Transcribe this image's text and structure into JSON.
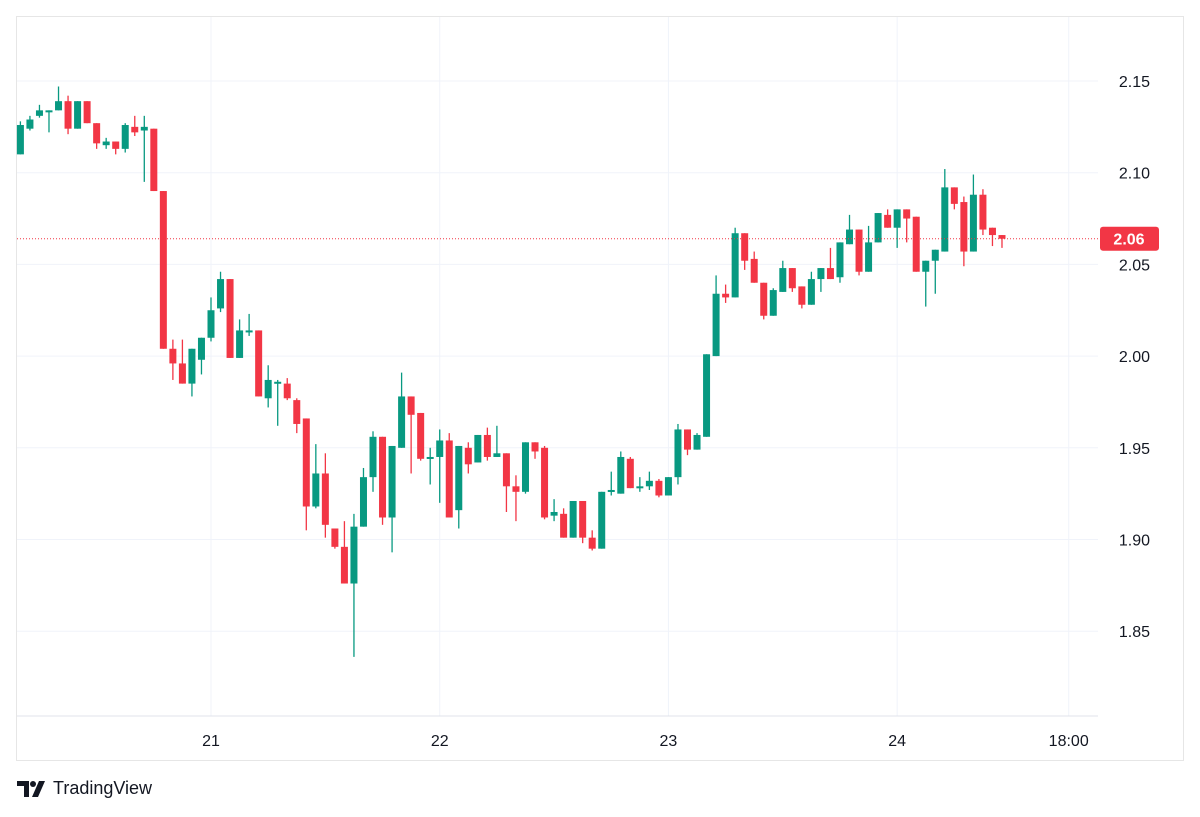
{
  "chart_data": {
    "type": "candlestick",
    "title": "",
    "x_ticks": [
      {
        "label": "21",
        "t": "21 00:00"
      },
      {
        "label": "22",
        "t": "22 00:00"
      },
      {
        "label": "23",
        "t": "23 00:00"
      },
      {
        "label": "24",
        "t": "24 00:00"
      },
      {
        "label": "18:00",
        "t": "24 18:00"
      }
    ],
    "y_ticks": [
      "2.15",
      "2.10",
      "2.05",
      "2.00",
      "1.95",
      "1.90",
      "1.85"
    ],
    "ylim": [
      1.81,
      2.19
    ],
    "grid": true,
    "last_price": {
      "label": "2.06",
      "value": 2.064,
      "color": "#f23645"
    },
    "colors": {
      "up": "#089981",
      "down": "#f23645"
    },
    "fields": [
      "time",
      "open",
      "high",
      "low",
      "close"
    ],
    "candles": [
      [
        "20 04:00",
        2.11,
        2.128,
        2.11,
        2.126
      ],
      [
        "20 05:00",
        2.124,
        2.131,
        2.123,
        2.129
      ],
      [
        "20 06:00",
        2.131,
        2.137,
        2.13,
        2.134
      ],
      [
        "20 07:00",
        2.133,
        2.134,
        2.122,
        2.134
      ],
      [
        "20 08:00",
        2.134,
        2.147,
        2.134,
        2.139
      ],
      [
        "20 09:00",
        2.139,
        2.142,
        2.121,
        2.124
      ],
      [
        "20 10:00",
        2.124,
        2.139,
        2.124,
        2.139
      ],
      [
        "20 11:00",
        2.139,
        2.139,
        2.127,
        2.127
      ],
      [
        "20 12:00",
        2.127,
        2.127,
        2.113,
        2.116
      ],
      [
        "20 13:00",
        2.115,
        2.119,
        2.113,
        2.117
      ],
      [
        "20 14:00",
        2.117,
        2.117,
        2.11,
        2.113
      ],
      [
        "20 15:00",
        2.113,
        2.127,
        2.111,
        2.126
      ],
      [
        "20 16:00",
        2.125,
        2.131,
        2.12,
        2.122
      ],
      [
        "20 17:00",
        2.123,
        2.131,
        2.095,
        2.125
      ],
      [
        "20 18:00",
        2.124,
        2.124,
        2.09,
        2.09
      ],
      [
        "20 19:00",
        2.09,
        2.09,
        2.004,
        2.004
      ],
      [
        "20 20:00",
        2.004,
        2.009,
        1.987,
        1.996
      ],
      [
        "20 21:00",
        1.996,
        2.009,
        1.985,
        1.985
      ],
      [
        "20 22:00",
        1.985,
        2.004,
        1.978,
        2.004
      ],
      [
        "20 23:00",
        1.998,
        2.01,
        1.99,
        2.01
      ],
      [
        "21 00:00",
        2.01,
        2.032,
        2.008,
        2.025
      ],
      [
        "21 01:00",
        2.026,
        2.046,
        2.024,
        2.042
      ],
      [
        "21 02:00",
        2.042,
        2.042,
        1.999,
        1.999
      ],
      [
        "21 03:00",
        1.999,
        2.02,
        1.999,
        2.014
      ],
      [
        "21 04:00",
        2.014,
        2.023,
        2.011,
        2.014
      ],
      [
        "21 05:00",
        2.014,
        2.014,
        1.978,
        1.978
      ],
      [
        "21 06:00",
        1.977,
        1.995,
        1.972,
        1.987
      ],
      [
        "21 07:00",
        1.986,
        1.987,
        1.962,
        1.986
      ],
      [
        "21 08:00",
        1.985,
        1.988,
        1.976,
        1.977
      ],
      [
        "21 09:00",
        1.976,
        1.977,
        1.958,
        1.963
      ],
      [
        "21 10:00",
        1.966,
        1.966,
        1.905,
        1.918
      ],
      [
        "21 11:00",
        1.918,
        1.952,
        1.917,
        1.936
      ],
      [
        "21 12:00",
        1.936,
        1.947,
        1.901,
        1.908
      ],
      [
        "21 13:00",
        1.906,
        1.906,
        1.895,
        1.896
      ],
      [
        "21 14:00",
        1.896,
        1.91,
        1.876,
        1.876
      ],
      [
        "21 15:00",
        1.876,
        1.914,
        1.836,
        1.907
      ],
      [
        "21 16:00",
        1.907,
        1.939,
        1.907,
        1.934
      ],
      [
        "21 17:00",
        1.934,
        1.959,
        1.926,
        1.956
      ],
      [
        "21 18:00",
        1.956,
        1.956,
        1.908,
        1.912
      ],
      [
        "21 19:00",
        1.912,
        1.951,
        1.893,
        1.951
      ],
      [
        "21 20:00",
        1.95,
        1.991,
        1.95,
        1.978
      ],
      [
        "21 21:00",
        1.978,
        1.978,
        1.936,
        1.968
      ],
      [
        "21 22:00",
        1.969,
        1.969,
        1.943,
        1.944
      ],
      [
        "21 23:00",
        1.945,
        1.95,
        1.93,
        1.945
      ],
      [
        "22 00:00",
        1.945,
        1.96,
        1.92,
        1.954
      ],
      [
        "22 01:00",
        1.954,
        1.958,
        1.912,
        1.912
      ],
      [
        "22 02:00",
        1.916,
        1.951,
        1.906,
        1.951
      ],
      [
        "22 03:00",
        1.95,
        1.953,
        1.936,
        1.941
      ],
      [
        "22 04:00",
        1.942,
        1.957,
        1.942,
        1.957
      ],
      [
        "22 05:00",
        1.957,
        1.961,
        1.943,
        1.945
      ],
      [
        "22 06:00",
        1.945,
        1.962,
        1.945,
        1.947
      ],
      [
        "22 07:00",
        1.947,
        1.947,
        1.915,
        1.929
      ],
      [
        "22 08:00",
        1.929,
        1.935,
        1.91,
        1.926
      ],
      [
        "22 09:00",
        1.926,
        1.953,
        1.925,
        1.953
      ],
      [
        "22 10:00",
        1.953,
        1.953,
        1.944,
        1.948
      ],
      [
        "22 11:00",
        1.95,
        1.951,
        1.911,
        1.912
      ],
      [
        "22 12:00",
        1.913,
        1.922,
        1.91,
        1.915
      ],
      [
        "22 13:00",
        1.914,
        1.917,
        1.901,
        1.901
      ],
      [
        "22 14:00",
        1.901,
        1.921,
        1.901,
        1.921
      ],
      [
        "22 15:00",
        1.921,
        1.921,
        1.898,
        1.901
      ],
      [
        "22 16:00",
        1.901,
        1.905,
        1.894,
        1.895
      ],
      [
        "22 17:00",
        1.895,
        1.926,
        1.895,
        1.926
      ],
      [
        "22 18:00",
        1.927,
        1.937,
        1.924,
        1.927
      ],
      [
        "22 19:00",
        1.925,
        1.948,
        1.925,
        1.945
      ],
      [
        "22 20:00",
        1.944,
        1.945,
        1.928,
        1.928
      ],
      [
        "22 21:00",
        1.929,
        1.934,
        1.926,
        1.929
      ],
      [
        "22 22:00",
        1.929,
        1.937,
        1.927,
        1.932
      ],
      [
        "22 23:00",
        1.932,
        1.933,
        1.923,
        1.924
      ],
      [
        "23 00:00",
        1.924,
        1.934,
        1.924,
        1.934
      ],
      [
        "23 01:00",
        1.934,
        1.963,
        1.93,
        1.96
      ],
      [
        "23 02:00",
        1.96,
        1.96,
        1.946,
        1.949
      ],
      [
        "23 03:00",
        1.949,
        1.958,
        1.949,
        1.957
      ],
      [
        "23 04:00",
        1.956,
        2.001,
        1.956,
        2.001
      ],
      [
        "23 05:00",
        2.0,
        2.044,
        2.0,
        2.034
      ],
      [
        "23 06:00",
        2.034,
        2.039,
        2.029,
        2.032
      ],
      [
        "23 07:00",
        2.032,
        2.07,
        2.032,
        2.067
      ],
      [
        "23 08:00",
        2.067,
        2.067,
        2.047,
        2.052
      ],
      [
        "23 09:00",
        2.053,
        2.057,
        2.04,
        2.04
      ],
      [
        "23 10:00",
        2.04,
        2.04,
        2.02,
        2.022
      ],
      [
        "23 11:00",
        2.022,
        2.037,
        2.022,
        2.036
      ],
      [
        "23 12:00",
        2.035,
        2.052,
        2.035,
        2.048
      ],
      [
        "23 13:00",
        2.048,
        2.048,
        2.035,
        2.037
      ],
      [
        "23 14:00",
        2.038,
        2.038,
        2.026,
        2.028
      ],
      [
        "23 15:00",
        2.028,
        2.046,
        2.028,
        2.042
      ],
      [
        "23 16:00",
        2.042,
        2.048,
        2.035,
        2.048
      ],
      [
        "23 17:00",
        2.048,
        2.059,
        2.042,
        2.042
      ],
      [
        "23 18:00",
        2.043,
        2.062,
        2.04,
        2.062
      ],
      [
        "23 19:00",
        2.061,
        2.077,
        2.061,
        2.069
      ],
      [
        "23 20:00",
        2.069,
        2.069,
        2.044,
        2.046
      ],
      [
        "23 21:00",
        2.046,
        2.071,
        2.046,
        2.062
      ],
      [
        "23 22:00",
        2.062,
        2.078,
        2.062,
        2.078
      ],
      [
        "23 23:00",
        2.077,
        2.08,
        2.07,
        2.07
      ],
      [
        "24 00:00",
        2.07,
        2.08,
        2.059,
        2.08
      ],
      [
        "24 01:00",
        2.08,
        2.08,
        2.062,
        2.075
      ],
      [
        "24 02:00",
        2.076,
        2.076,
        2.046,
        2.046
      ],
      [
        "24 03:00",
        2.046,
        2.052,
        2.027,
        2.052
      ],
      [
        "24 04:00",
        2.052,
        2.058,
        2.034,
        2.058
      ],
      [
        "24 05:00",
        2.057,
        2.102,
        2.057,
        2.092
      ],
      [
        "24 06:00",
        2.092,
        2.092,
        2.08,
        2.083
      ],
      [
        "24 07:00",
        2.084,
        2.087,
        2.049,
        2.057
      ],
      [
        "24 08:00",
        2.057,
        2.099,
        2.057,
        2.088
      ],
      [
        "24 09:00",
        2.088,
        2.091,
        2.066,
        2.069
      ],
      [
        "24 10:00",
        2.07,
        2.07,
        2.06,
        2.066
      ],
      [
        "24 11:00",
        2.066,
        2.066,
        2.059,
        2.064
      ]
    ]
  },
  "branding": {
    "logo_text": "TradingView"
  }
}
